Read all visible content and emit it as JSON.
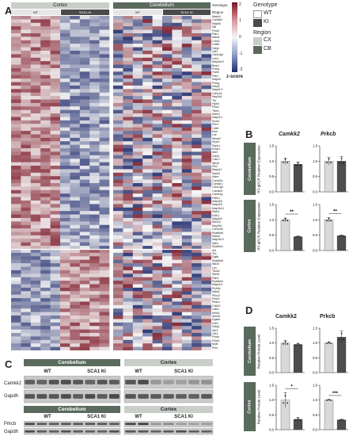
{
  "panel_a": {
    "letter": "A",
    "region_headers": [
      "Cortex",
      "Cerebellum"
    ],
    "genotype_headers": [
      "WT",
      "SCA1 KI",
      "WT",
      "SCA1 KI"
    ],
    "row_label_genotype": "Genotype",
    "row_label_region": "Region",
    "scale_ticks": [
      "2",
      "1",
      "0",
      "-1",
      "-2"
    ],
    "scale_title": "z-score",
    "legend": {
      "genotype_title": "Genotype",
      "genotype_items": [
        {
          "label": "WT",
          "color": "#ffffff"
        },
        {
          "label": "KI",
          "color": "#4a4a4a"
        }
      ],
      "region_title": "Region",
      "region_items": [
        {
          "label": "CX",
          "color": "#c9cec9"
        },
        {
          "label": "CB",
          "color": "#5a6a5c"
        }
      ]
    },
    "genes": [
      "Mapk4",
      "Camkk2",
      "Mapk6",
      "Nlk",
      "Prkcb",
      "Pak1",
      "Mast1",
      "Limk2",
      "Cdkl5",
      "Dstyk",
      "Ulk2",
      "Csnk1g3",
      "Lrrk2",
      "Map3k10",
      "Brsk1",
      "Prkcq",
      "Hunk",
      "Pdk1",
      "Mapk9",
      "Prkcg",
      "Nrbp2",
      "Mapk13",
      "Csnk1d",
      "Map3k1",
      "Ttk",
      "Hipk3",
      "Prkcz",
      "Ttbk1",
      "Mark1",
      "Mapk14",
      "Srpk1",
      "Pim1",
      "Cdk5",
      "Mos",
      "Lck",
      "Mknk2",
      "Srpk1",
      "Pdpk1",
      "Rock1",
      "Akt3",
      "Dclk3",
      "Cdk17",
      "Stk40",
      "Plk2",
      "Mapk11",
      "Mast3",
      "Kalrn",
      "Camk2a",
      "Camkk1",
      "Csnk1g2",
      "Camk2b",
      "Camk1g",
      "Pdik1l",
      "Map3k5",
      "Map2k3",
      "Map3k14",
      "Ripk4",
      "Dclk1",
      "Map3k3",
      "Stk32c",
      "Map3k1",
      "Csnk2a2",
      "Rps6ka5",
      "Mast4",
      "Map3k10",
      "Ilpk4",
      "Rps6ka1",
      "Axl",
      "Tec",
      "Dgkk",
      "Rps6ka5",
      "Stk33",
      "Lyn",
      "Tank3",
      "Stk36",
      "Pak3",
      "Rps6kb2",
      "Mapk15",
      "Prpf4b",
      "Mast1",
      "Pknx2",
      "Prkd1",
      "Pkdcc",
      "Cdk12",
      "Lats1",
      "Mink1",
      "Adck5",
      "Dgsek",
      "Ddr2",
      "Nrbp1",
      "Stk3",
      "Clk4",
      "Prkdc",
      "Prkd2",
      "Mylk",
      "Prkx"
    ],
    "values_seed": 7
  },
  "panel_b": {
    "letter": "B",
    "genes": [
      "Camkk2",
      "Prkcb"
    ],
    "rows": [
      {
        "region": "Cerebellum",
        "ylabel": "RT-qPCR Relative Expression",
        "charts": [
          {
            "gene": "Camkk2",
            "values": [
              1.0,
              0.9
            ],
            "errors": [
              0.1,
              0.07
            ],
            "ylim": [
              0,
              1.5
            ],
            "sig": ""
          },
          {
            "gene": "Prkcb",
            "values": [
              1.0,
              1.0
            ],
            "errors": [
              0.12,
              0.15
            ],
            "ylim": [
              0,
              1.5
            ],
            "sig": ""
          }
        ]
      },
      {
        "region": "Cortex",
        "ylabel": "RT-qPCR Relative Expression",
        "charts": [
          {
            "gene": "Camkk2",
            "values": [
              1.0,
              0.45
            ],
            "errors": [
              0.06,
              0.02
            ],
            "ylim": [
              0,
              1.5
            ],
            "sig": "**"
          },
          {
            "gene": "Prkcb",
            "values": [
              1.0,
              0.48
            ],
            "errors": [
              0.07,
              0.02
            ],
            "ylim": [
              0,
              1.5
            ],
            "sig": "**"
          }
        ]
      }
    ],
    "ticks": [
      "1.5",
      "1.0",
      "0.5",
      "0.0"
    ]
  },
  "panel_c": {
    "letter": "C",
    "blocks": [
      {
        "headers": [
          "Cerebellum",
          "Cortex"
        ],
        "genotypes": [
          "WT",
          "SCA1 KI",
          "WT",
          "SCA1 KI"
        ],
        "rows": [
          "Camkk2",
          "Gapdh"
        ]
      },
      {
        "headers": [
          "Cerebellum",
          "Cortex"
        ],
        "genotypes": [
          "WT",
          "SCA1 KI",
          "WT",
          "SCA1 KI"
        ],
        "rows": [
          "Prkcb",
          "Gapdh"
        ]
      }
    ]
  },
  "panel_d": {
    "letter": "D",
    "genes": [
      "Camkk2",
      "Prkcb"
    ],
    "rows": [
      {
        "region": "Cerebellum",
        "ylabel": "Relative Protein Level",
        "charts": [
          {
            "gene": "Camkk2",
            "values": [
              1.0,
              0.95
            ],
            "errors": [
              0.08,
              0.04
            ],
            "ylim": [
              0,
              1.5
            ],
            "sig": ""
          },
          {
            "gene": "Prkcb",
            "values": [
              1.0,
              1.2
            ],
            "errors": [
              0.04,
              0.2
            ],
            "ylim": [
              0,
              1.5
            ],
            "sig": ""
          }
        ]
      },
      {
        "region": "Cortex",
        "ylabel": "Relative Protein Level",
        "charts": [
          {
            "gene": "Camkk2",
            "values": [
              1.0,
              0.35
            ],
            "errors": [
              0.25,
              0.06
            ],
            "ylim": [
              0,
              1.5
            ],
            "sig": "*"
          },
          {
            "gene": "Prkcb",
            "values": [
              1.0,
              0.33
            ],
            "errors": [
              0.02,
              0.02
            ],
            "ylim": [
              0,
              1.5
            ],
            "sig": "***"
          }
        ]
      }
    ],
    "ticks": [
      "1.5",
      "1.0",
      "0.5",
      "0.0"
    ]
  },
  "colors": {
    "wt_bar": "#d9d9d9",
    "ki_bar": "#4d4d4d",
    "region_dark": "#5a6a5c",
    "heat_high": "#7a1424",
    "heat_low": "#1f2a6b"
  }
}
